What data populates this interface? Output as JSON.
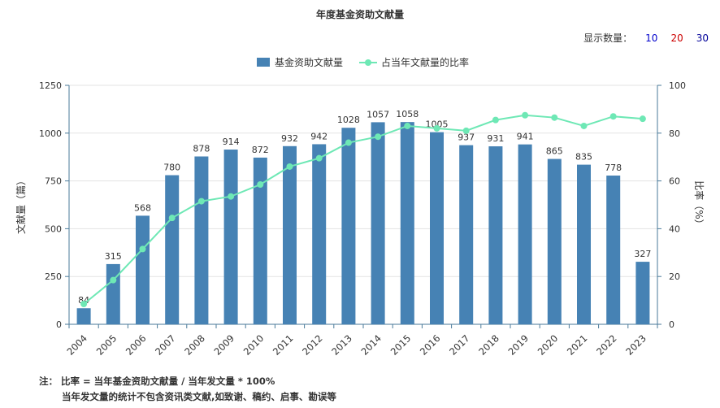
{
  "title": "年度基金资助文献量",
  "display_count": {
    "label": "显示数量：",
    "options": [
      {
        "label": "10",
        "color": "#0000cc"
      },
      {
        "label": "20",
        "color": "#cc0000"
      },
      {
        "label": "30",
        "color": "#000099"
      }
    ]
  },
  "notes": {
    "line1": "注：  比率 = 当年基金资助文献量 / 当年发文量 * 100%",
    "line2": "当年发文量的统计不包含资讯类文献,如致谢、稿约、启事、勘误等"
  },
  "chart_data": {
    "type": "bar",
    "categories": [
      "2004",
      "2005",
      "2006",
      "2007",
      "2008",
      "2009",
      "2010",
      "2011",
      "2012",
      "2013",
      "2014",
      "2015",
      "2016",
      "2017",
      "2018",
      "2019",
      "2020",
      "2021",
      "2022",
      "2023"
    ],
    "series": [
      {
        "name": "基金资助文献量",
        "type": "bar",
        "axis": "left",
        "color": "#4682b4",
        "values": [
          84,
          315,
          568,
          780,
          878,
          914,
          872,
          932,
          942,
          1028,
          1057,
          1058,
          1005,
          937,
          931,
          941,
          865,
          835,
          778,
          327
        ],
        "labels": [
          "84",
          "315",
          "568",
          "780",
          "878",
          "914",
          "872",
          "932",
          "942",
          "1028",
          "1057",
          "1058",
          "1005",
          "937",
          "931",
          "941",
          "865",
          "835",
          "778",
          "327"
        ]
      },
      {
        "name": "占当年文献量的比率",
        "type": "line",
        "axis": "right",
        "color": "#6ee8b5",
        "values": [
          8.5,
          18.5,
          31.5,
          44.5,
          51.5,
          53.5,
          58.5,
          66,
          69.5,
          76,
          78.5,
          83,
          82,
          81,
          85.5,
          87.5,
          86.5,
          83,
          87,
          86
        ]
      }
    ],
    "yleft": {
      "label": "文献量（篇）",
      "ylim": [
        0,
        1250
      ],
      "ticks": [
        "0",
        "250",
        "500",
        "750",
        "1000",
        "1250"
      ]
    },
    "yright": {
      "label": "比率（%）",
      "ylim": [
        0,
        100
      ],
      "ticks": [
        "0",
        "20",
        "40",
        "60",
        "80",
        "100"
      ]
    },
    "legend_position": "top-center",
    "grid": true,
    "colors": {
      "axis": "#4a7a9a",
      "grid": "#e3e3e3",
      "text": "#333333"
    }
  }
}
